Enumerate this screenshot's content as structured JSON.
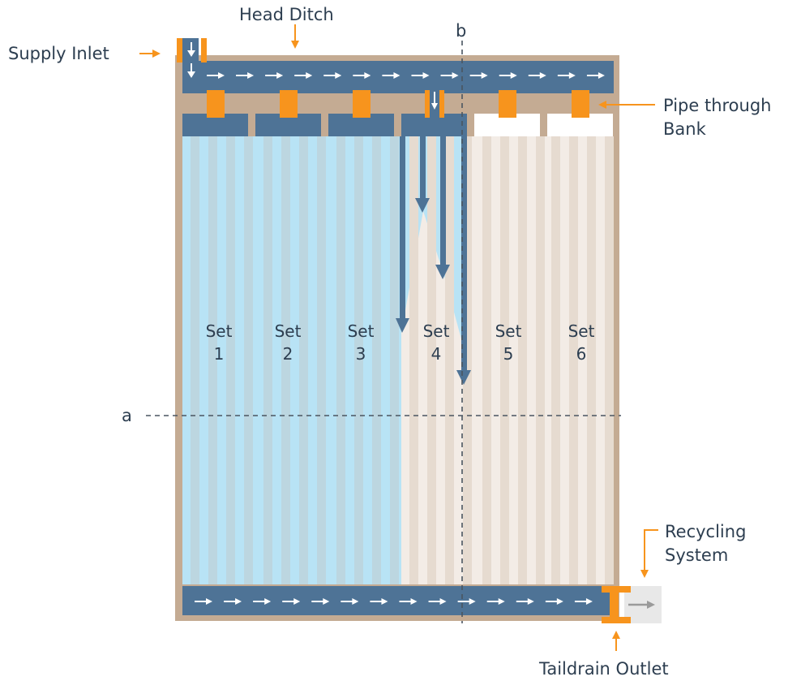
{
  "labels": {
    "head_ditch": "Head Ditch",
    "supply_inlet": "Supply Inlet",
    "pipe_through_bank_line1": "Pipe through",
    "pipe_through_bank_line2": "Bank",
    "recycling_line1": "Recycling",
    "recycling_line2": "System",
    "taildrain_outlet": "Taildrain Outlet",
    "section_a": "a",
    "section_b": "b"
  },
  "sets": [
    {
      "word": "Set",
      "num": "1",
      "status": "irrigated"
    },
    {
      "word": "Set",
      "num": "2",
      "status": "irrigated"
    },
    {
      "word": "Set",
      "num": "3",
      "status": "irrigated"
    },
    {
      "word": "Set",
      "num": "4",
      "status": "irrigating"
    },
    {
      "word": "Set",
      "num": "5",
      "status": "dry"
    },
    {
      "word": "Set",
      "num": "6",
      "status": "dry"
    }
  ],
  "colors": {
    "bank": "#c4ab93",
    "ditch": "#4e7396",
    "gate": "#f7941d",
    "wet": "#b8e3f5",
    "wet_row": "#bcd4dc",
    "dry": "#f3ece6",
    "dry_row": "#e6dbd0",
    "arrow": "#ffffff",
    "text": "#2d3e50"
  }
}
